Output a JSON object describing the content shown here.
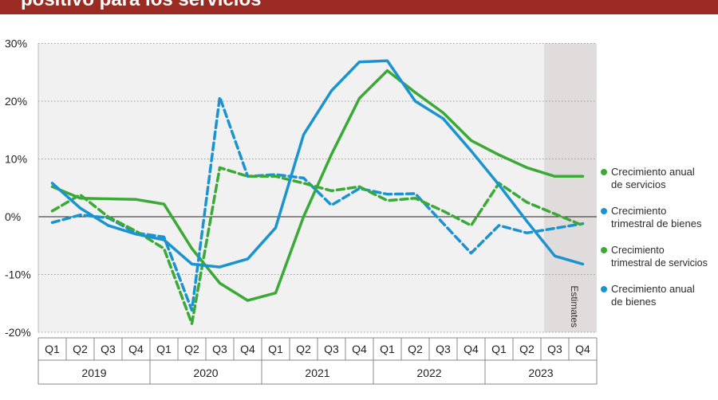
{
  "header": {
    "title": "positivo para los servicios"
  },
  "chart_data": {
    "type": "line",
    "categories": [
      "Q1",
      "Q2",
      "Q3",
      "Q4",
      "Q1",
      "Q2",
      "Q3",
      "Q4",
      "Q1",
      "Q2",
      "Q3",
      "Q4",
      "Q1",
      "Q2",
      "Q3",
      "Q4",
      "Q1",
      "Q2",
      "Q3",
      "Q4"
    ],
    "years": [
      "2019",
      "2020",
      "2021",
      "2022",
      "2023"
    ],
    "ylim": [
      -20,
      30
    ],
    "yticks": [
      30,
      20,
      10,
      0,
      -10,
      -20
    ],
    "ytick_labels": [
      "30%",
      "20%",
      "10%",
      "0%",
      "-10%",
      "-20%"
    ],
    "estimates_label": "Estimates",
    "estimates_start_index": 18,
    "grid": "horizontal dotted",
    "legend_position": "right",
    "series": [
      {
        "name": "Crecimiento anual de servicios",
        "color": "#3aa935",
        "dashed": false,
        "values": [
          5.2,
          3.2,
          3.1,
          3.0,
          2.2,
          -5.5,
          -11.5,
          -14.5,
          -13.2,
          0.0,
          10.8,
          20.5,
          25.3,
          21.5,
          18.0,
          13.2,
          10.7,
          8.5,
          7.0,
          7.0
        ]
      },
      {
        "name": "Crecimiento trimestral de bienes",
        "color": "#1b93d0",
        "dashed": true,
        "values": [
          -1.0,
          0.3,
          -0.2,
          -2.8,
          -3.5,
          -16.2,
          20.7,
          7.0,
          7.3,
          6.7,
          2.0,
          4.9,
          3.9,
          4.0,
          null,
          -6.3,
          -1.5,
          -2.8,
          -2.0,
          -1.2
        ]
      },
      {
        "name": "Crecimiento trimestral de servicios",
        "color": "#3aa935",
        "dashed": true,
        "values": [
          1.0,
          3.8,
          0.0,
          -2.5,
          -5.5,
          -18.5,
          8.5,
          7.0,
          7.0,
          5.8,
          4.5,
          5.2,
          2.8,
          3.2,
          1.0,
          -1.5,
          5.8,
          2.5,
          0.5,
          -1.5
        ]
      },
      {
        "name": "Crecimiento anual de bienes",
        "color": "#1b93d0",
        "dashed": false,
        "values": [
          5.8,
          1.5,
          -1.5,
          -3.0,
          -4.0,
          -8.2,
          -8.7,
          -7.3,
          -1.9,
          14.2,
          21.8,
          26.8,
          27.0,
          20.0,
          17.0,
          11.4,
          5.5,
          -0.8,
          -6.8,
          -8.2
        ]
      }
    ]
  },
  "legend": {
    "items": [
      {
        "label": "Crecimiento anual\nde servicios",
        "color": "#3aa935"
      },
      {
        "label": "Crecimiento\ntrimestral de bienes",
        "color": "#1b93d0"
      },
      {
        "label": "Crecimiento\ntrimestral de servicios",
        "color": "#3aa935"
      },
      {
        "label": "Crecimiento anual\nde bienes",
        "color": "#1b93d0"
      }
    ]
  }
}
